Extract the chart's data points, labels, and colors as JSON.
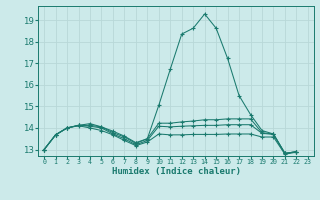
{
  "xlabel": "Humidex (Indice chaleur)",
  "xlim": [
    -0.5,
    23.5
  ],
  "ylim": [
    12.7,
    19.65
  ],
  "yticks": [
    13,
    14,
    15,
    16,
    17,
    18,
    19
  ],
  "xticks": [
    0,
    1,
    2,
    3,
    4,
    5,
    6,
    7,
    8,
    9,
    10,
    11,
    12,
    13,
    14,
    15,
    16,
    17,
    18,
    19,
    20,
    21,
    22,
    23
  ],
  "bg_color": "#cceaea",
  "grid_color": "#b8d8d8",
  "line_color": "#1a7a6e",
  "curves": [
    [
      13.0,
      13.68,
      14.0,
      14.12,
      14.2,
      14.05,
      13.85,
      13.62,
      13.32,
      13.5,
      15.05,
      16.72,
      18.35,
      18.62,
      19.28,
      18.62,
      17.22,
      15.5,
      14.62,
      13.88,
      13.72,
      12.82,
      12.9
    ],
    [
      13.0,
      13.68,
      14.0,
      14.12,
      14.12,
      14.05,
      13.78,
      13.58,
      13.28,
      13.5,
      14.22,
      14.22,
      14.28,
      14.32,
      14.38,
      14.38,
      14.42,
      14.42,
      14.42,
      13.78,
      13.72,
      12.82,
      12.9
    ],
    [
      13.0,
      13.68,
      14.0,
      14.12,
      14.08,
      14.0,
      13.72,
      13.5,
      13.22,
      13.42,
      14.08,
      14.05,
      14.08,
      14.1,
      14.12,
      14.12,
      14.15,
      14.15,
      14.15,
      13.75,
      13.7,
      12.82,
      12.9
    ],
    [
      13.0,
      13.68,
      14.0,
      14.1,
      14.0,
      13.88,
      13.68,
      13.42,
      13.18,
      13.35,
      13.72,
      13.68,
      13.68,
      13.7,
      13.7,
      13.7,
      13.72,
      13.72,
      13.72,
      13.58,
      13.58,
      12.78,
      12.88
    ]
  ]
}
